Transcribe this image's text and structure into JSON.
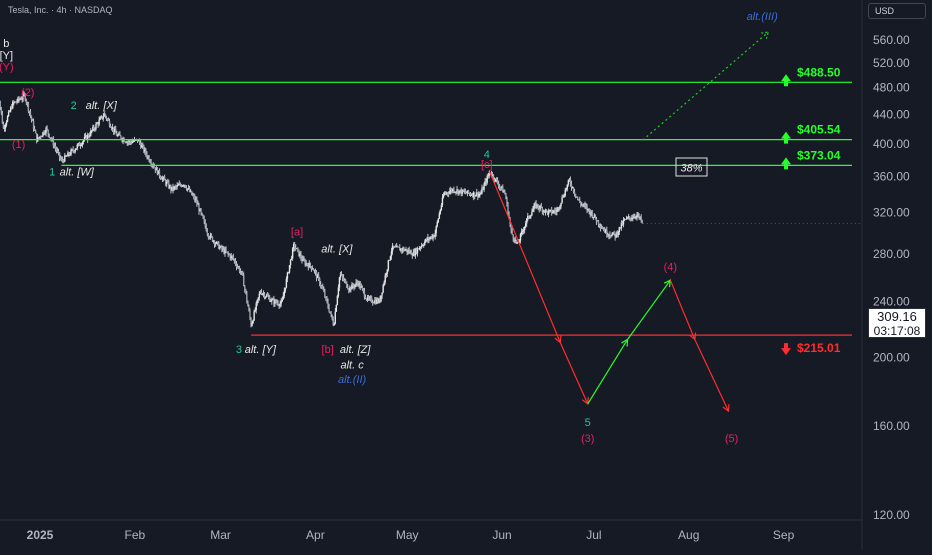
{
  "header": {
    "title": "Tesla, Inc. · 4h · NASDAQ"
  },
  "currency": "USD",
  "last_price": {
    "value": "309.16",
    "countdown": "03:17:08"
  },
  "colors": {
    "background": "#161a25",
    "candles": "#d1d4dc",
    "green_level": "#26ff2a",
    "red_level": "#ff2d2d",
    "wave_teal": "#20c997",
    "wave_pink": "#e91e63",
    "wave_blue": "#3d6cd6",
    "dotted_projection": "#22cc22"
  },
  "chart_data": {
    "type": "candlestick",
    "title": "",
    "xlabel": "",
    "ylabel": "",
    "y_scale": "log",
    "ylim": [
      118,
      598
    ],
    "y_ticks": [
      120,
      160,
      200,
      240,
      280,
      320,
      360,
      400,
      440,
      480,
      520,
      560
    ],
    "y_tick_labels": [
      "120.00",
      "160.00",
      "200.00",
      "240.00",
      "280.00",
      "320.00",
      "360.00",
      "400.00",
      "440.00",
      "480.00",
      "520.00",
      "560.00"
    ],
    "x_ticks": [
      {
        "label": "2025",
        "date": "2025-01-01",
        "bold": true
      },
      {
        "label": "Feb",
        "date": "2025-02-01"
      },
      {
        "label": "Mar",
        "date": "2025-03-01"
      },
      {
        "label": "Apr",
        "date": "2025-04-01"
      },
      {
        "label": "May",
        "date": "2025-05-01"
      },
      {
        "label": "Jun",
        "date": "2025-06-01"
      },
      {
        "label": "Jul",
        "date": "2025-07-01"
      },
      {
        "label": "Aug",
        "date": "2025-08-01"
      },
      {
        "label": "Sep",
        "date": "2025-09-01"
      }
    ],
    "price_path": [
      [
        "2024-12-18",
        484
      ],
      [
        "2024-12-20",
        420
      ],
      [
        "2024-12-23",
        455
      ],
      [
        "2024-12-27",
        468
      ],
      [
        "2024-12-31",
        405
      ],
      [
        "2025-01-03",
        420
      ],
      [
        "2025-01-08",
        378
      ],
      [
        "2025-01-13",
        396
      ],
      [
        "2025-01-17",
        412
      ],
      [
        "2025-01-22",
        440
      ],
      [
        "2025-01-26",
        412
      ],
      [
        "2025-01-30",
        402
      ],
      [
        "2025-02-02",
        405
      ],
      [
        "2025-02-05",
        385
      ],
      [
        "2025-02-09",
        362
      ],
      [
        "2025-02-13",
        345
      ],
      [
        "2025-02-17",
        352
      ],
      [
        "2025-02-21",
        332
      ],
      [
        "2025-02-25",
        298
      ],
      [
        "2025-03-01",
        285
      ],
      [
        "2025-03-05",
        276
      ],
      [
        "2025-03-08",
        262
      ],
      [
        "2025-03-11",
        222
      ],
      [
        "2025-03-14",
        248
      ],
      [
        "2025-03-18",
        240
      ],
      [
        "2025-03-21",
        238
      ],
      [
        "2025-03-25",
        288
      ],
      [
        "2025-03-28",
        273
      ],
      [
        "2025-03-31",
        268
      ],
      [
        "2025-04-03",
        252
      ],
      [
        "2025-04-07",
        222
      ],
      [
        "2025-04-09",
        262
      ],
      [
        "2025-04-12",
        250
      ],
      [
        "2025-04-15",
        255
      ],
      [
        "2025-04-18",
        241
      ],
      [
        "2025-04-22",
        240
      ],
      [
        "2025-04-26",
        285
      ],
      [
        "2025-04-30",
        284
      ],
      [
        "2025-05-03",
        280
      ],
      [
        "2025-05-07",
        292
      ],
      [
        "2025-05-10",
        298
      ],
      [
        "2025-05-13",
        340
      ],
      [
        "2025-05-16",
        345
      ],
      [
        "2025-05-19",
        342
      ],
      [
        "2025-05-22",
        340
      ],
      [
        "2025-05-25",
        340
      ],
      [
        "2025-05-28",
        365
      ],
      [
        "2025-05-30",
        355
      ],
      [
        "2025-06-02",
        340
      ],
      [
        "2025-06-04",
        300
      ],
      [
        "2025-06-06",
        288
      ],
      [
        "2025-06-09",
        312
      ],
      [
        "2025-06-12",
        328
      ],
      [
        "2025-06-16",
        320
      ],
      [
        "2025-06-19",
        322
      ],
      [
        "2025-06-23",
        355
      ],
      [
        "2025-06-26",
        332
      ],
      [
        "2025-06-30",
        320
      ],
      [
        "2025-07-02",
        312
      ],
      [
        "2025-07-05",
        300
      ],
      [
        "2025-07-08",
        297
      ],
      [
        "2025-07-11",
        312
      ],
      [
        "2025-07-15",
        318
      ],
      [
        "2025-07-17",
        309
      ]
    ],
    "levels": [
      {
        "label": "$488.50",
        "value": 488.5,
        "color": "green",
        "arrow": "up",
        "x_start": "2024-12-18"
      },
      {
        "label": "$405.54",
        "value": 405.54,
        "color": "green",
        "arrow": "up",
        "x_start": "2024-12-18"
      },
      {
        "label": "$373.04",
        "value": 373.04,
        "color": "green",
        "arrow": "up",
        "x_start": "2025-01-08"
      },
      {
        "label": "$215.01",
        "value": 215.01,
        "color": "red",
        "arrow": "down",
        "x_start": "2025-03-11"
      }
    ],
    "red_projection": [
      [
        "2025-05-28",
        365
      ],
      [
        "2025-06-20",
        210
      ],
      [
        "2025-06-29",
        172
      ]
    ],
    "green_projection": [
      [
        "2025-06-29",
        172
      ],
      [
        "2025-07-12",
        212
      ],
      [
        "2025-07-26",
        257
      ]
    ],
    "red_projection_2": [
      [
        "2025-07-26",
        257
      ],
      [
        "2025-08-03",
        212
      ],
      [
        "2025-08-14",
        168
      ]
    ],
    "dotted_projection": [
      [
        "2025-07-17",
        405
      ],
      [
        "2025-08-27",
        575
      ]
    ],
    "probability_label": "38%",
    "wave_labels": [
      {
        "text": "b",
        "color": "white",
        "date": "2024-12-21",
        "price": 548
      },
      {
        "text": "[Y]",
        "color": "white",
        "date": "2024-12-21",
        "price": 527
      },
      {
        "text": "(Y)",
        "color": "pink",
        "date": "2024-12-21",
        "price": 508
      },
      {
        "text": "(2)",
        "color": "pink",
        "date": "2024-12-28",
        "price": 467
      },
      {
        "text": "(1)",
        "color": "pink",
        "date": "2024-12-25",
        "price": 395
      },
      {
        "text": "2",
        "color": "teal",
        "date": "2025-01-12",
        "price": 448
      },
      {
        "text": "alt. [X]",
        "color": "white",
        "date": "2025-01-21",
        "price": 448
      },
      {
        "text": "1",
        "color": "teal",
        "date": "2025-01-05",
        "price": 361
      },
      {
        "text": "alt. [W]",
        "color": "white",
        "date": "2025-01-13",
        "price": 361
      },
      {
        "text": "[a]",
        "color": "pink",
        "date": "2025-03-26",
        "price": 297
      },
      {
        "text": "alt. [X]",
        "color": "white",
        "date": "2025-04-08",
        "price": 281
      },
      {
        "text": "3",
        "color": "teal",
        "date": "2025-03-07",
        "price": 203
      },
      {
        "text": "alt. [Y]",
        "color": "white",
        "date": "2025-03-14",
        "price": 203
      },
      {
        "text": "[b]",
        "color": "pink",
        "date": "2025-04-05",
        "price": 203
      },
      {
        "text": "alt. [Z]",
        "color": "white",
        "date": "2025-04-14",
        "price": 203
      },
      {
        "text": "alt. c",
        "color": "white",
        "date": "2025-04-13",
        "price": 193
      },
      {
        "text": "alt.(II)",
        "color": "blue",
        "date": "2025-04-13",
        "price": 184
      },
      {
        "text": "4",
        "color": "teal",
        "date": "2025-05-27",
        "price": 382
      },
      {
        "text": "[c]",
        "color": "pink",
        "date": "2025-05-27",
        "price": 370
      },
      {
        "text": "5",
        "color": "teal",
        "date": "2025-06-29",
        "price": 160
      },
      {
        "text": "(3)",
        "color": "pink",
        "date": "2025-06-29",
        "price": 152
      },
      {
        "text": "(4)",
        "color": "pink",
        "date": "2025-07-26",
        "price": 265
      },
      {
        "text": "(5)",
        "color": "pink",
        "date": "2025-08-15",
        "price": 152
      },
      {
        "text": "alt.(III)",
        "color": "blue",
        "date": "2025-08-25",
        "price": 598
      }
    ]
  }
}
